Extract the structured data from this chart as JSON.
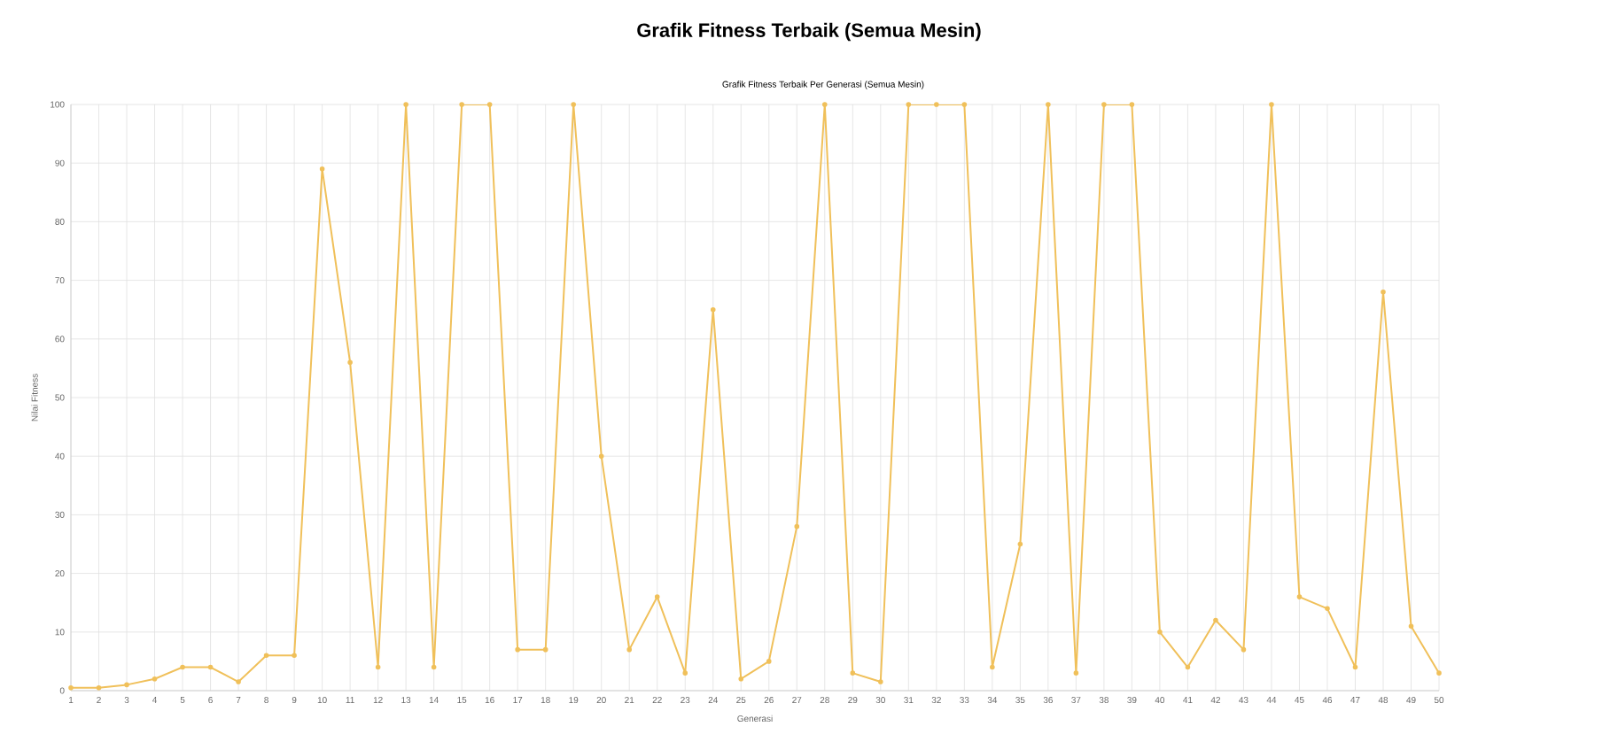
{
  "chart_data": {
    "type": "line",
    "title": "Grafik Fitness Terbaik (Semua Mesin)",
    "subtitle": "Grafik Fitness Terbaik Per Generasi (Semua Mesin)",
    "xlabel": "Generasi",
    "ylabel": "Nilai Fitness",
    "categories": [
      "1",
      "2",
      "3",
      "4",
      "5",
      "6",
      "7",
      "8",
      "9",
      "10",
      "11",
      "12",
      "13",
      "14",
      "15",
      "16",
      "17",
      "18",
      "19",
      "20",
      "21",
      "22",
      "23",
      "24",
      "25",
      "26",
      "27",
      "28",
      "29",
      "30",
      "31",
      "32",
      "33",
      "34",
      "35",
      "36",
      "37",
      "38",
      "39",
      "40",
      "41",
      "42",
      "43",
      "44",
      "45",
      "46",
      "47",
      "48",
      "49",
      "50"
    ],
    "series": [
      {
        "color": "#f0c05a",
        "values": [
          0.5,
          0.5,
          1,
          2,
          4,
          4,
          1.5,
          6,
          6,
          89,
          56,
          4,
          100,
          4,
          100,
          100,
          7,
          7,
          100,
          40,
          7,
          16,
          3,
          65,
          2,
          5,
          28,
          100,
          3,
          1.5,
          100,
          100,
          100,
          4,
          25,
          100,
          3,
          100,
          100,
          10,
          4,
          12,
          7,
          100,
          16,
          14,
          4,
          68,
          11,
          3
        ]
      }
    ],
    "ylim": [
      0,
      100
    ],
    "yticks": [
      0,
      10,
      20,
      30,
      40,
      50,
      60,
      70,
      80,
      90,
      100
    ],
    "grid": true,
    "marker": "circle",
    "line_style": "solid"
  }
}
